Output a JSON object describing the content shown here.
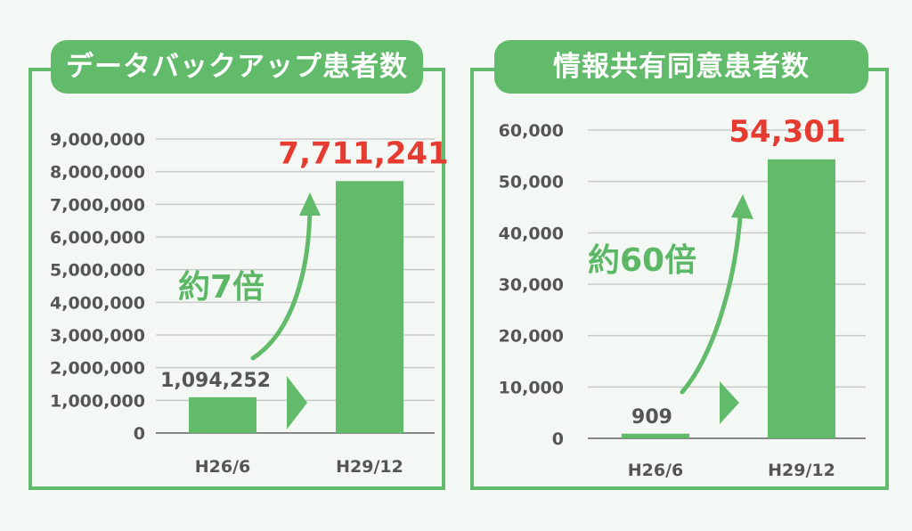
{
  "colors": {
    "accent": "#62bb6b",
    "bar": "#62bb6b",
    "highlight": "#e53b31",
    "axis_text": "#555555"
  },
  "panels": [
    {
      "title": "データバックアップ患者数"
    },
    {
      "title": "情報共有同意患者数"
    }
  ],
  "chart_data": [
    {
      "type": "bar",
      "title": "データバックアップ患者数",
      "categories": [
        "H26/6",
        "H29/12"
      ],
      "values": [
        1094252,
        7711241
      ],
      "value_labels": [
        "1,094,252",
        "7,711,241"
      ],
      "ylim": [
        0,
        9000000
      ],
      "yticks": [
        "0",
        "1,000,000",
        "2,000,000",
        "3,000,000",
        "4,000,000",
        "5,000,000",
        "6,000,000",
        "7,000,000",
        "8,000,000",
        "9,000,000"
      ],
      "grid": true,
      "annotation": "約7倍"
    },
    {
      "type": "bar",
      "title": "情報共有同意患者数",
      "categories": [
        "H26/6",
        "H29/12"
      ],
      "values": [
        909,
        54301
      ],
      "value_labels": [
        "909",
        "54,301"
      ],
      "ylim": [
        0,
        60000
      ],
      "yticks": [
        "0",
        "10,000",
        "20,000",
        "30,000",
        "40,000",
        "50,000",
        "60,000"
      ],
      "grid": true,
      "annotation": "約60倍"
    }
  ]
}
